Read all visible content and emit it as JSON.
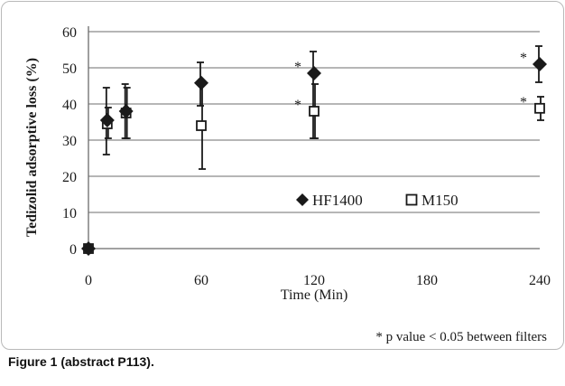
{
  "chart_data": {
    "type": "scatter",
    "xlabel": "Time (Min)",
    "ylabel": "Tedizolid adsorptive loss (%)",
    "xlim": [
      0,
      240
    ],
    "ylim": [
      0,
      60
    ],
    "xticks": [
      "0",
      "60",
      "120",
      "180",
      "240"
    ],
    "yticks": [
      "0",
      "10",
      "20",
      "30",
      "40",
      "50",
      "60"
    ],
    "grid": true,
    "legend_position": "inside-bottom-right",
    "series": [
      {
        "name": "HF1400",
        "marker": "filled-diamond",
        "color": "#1a1a1a",
        "x": [
          0,
          10,
          20,
          60,
          120,
          240
        ],
        "y": [
          0,
          35.5,
          38,
          45.8,
          48.5,
          51
        ],
        "err_low": [
          0,
          26,
          30.5,
          39.5,
          30.5,
          46
        ],
        "err_high": [
          0,
          44.5,
          45.5,
          51.5,
          54.5,
          56
        ]
      },
      {
        "name": "M150",
        "marker": "open-square",
        "color": "#1a1a1a",
        "x": [
          0,
          10,
          20,
          60,
          120,
          240
        ],
        "y": [
          0,
          34.5,
          37.5,
          34,
          38,
          38.8
        ],
        "err_low": [
          0,
          30.5,
          30.5,
          22,
          30.5,
          35.5
        ],
        "err_high": [
          0,
          39,
          44.5,
          46,
          45.5,
          42
        ]
      }
    ],
    "significance_markers": [
      {
        "label": "*",
        "series": 0,
        "x": 120
      },
      {
        "label": "*",
        "series": 0,
        "x": 240
      },
      {
        "label": "*",
        "series": 1,
        "x": 120
      },
      {
        "label": "*",
        "series": 1,
        "x": 240
      }
    ],
    "footnote": "* p value < 0.05 between filters"
  },
  "caption": "Figure 1 (abstract P113)."
}
